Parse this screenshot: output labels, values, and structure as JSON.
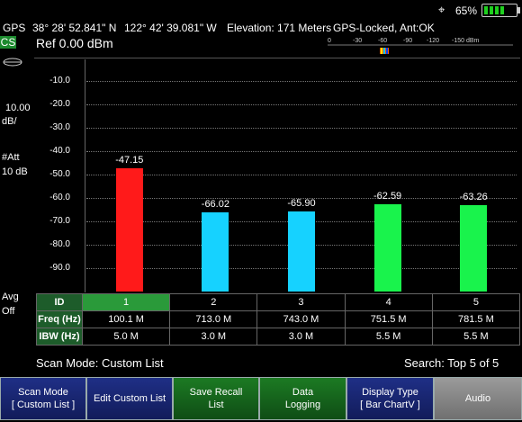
{
  "status": {
    "gps": "GPS",
    "latitude": "38° 28' 52.841\" N",
    "longitude": "122° 42' 39.081\" W",
    "elevation": "Elevation: 171 Meters",
    "gps_state": "GPS-Locked, Ant:OK",
    "settings_icon": "gear-icon",
    "battery_percent": "65%"
  },
  "left_panel": {
    "mode": "CS",
    "scale_value": "10.00",
    "scale_unit": "dB/",
    "att_label": "#Att",
    "att_value": "10 dB",
    "avg_label": "Avg",
    "avg_value": "Off"
  },
  "ref": "Ref  0.00  dBm",
  "scale_ticks": [
    "0",
    "-30",
    "-60",
    "-90",
    "-120",
    "-150 dBm"
  ],
  "chart_data": {
    "type": "bar",
    "categories": [
      "1",
      "2",
      "3",
      "4",
      "5"
    ],
    "values": [
      -47.15,
      -66.02,
      -65.9,
      -62.59,
      -63.26
    ],
    "value_labels": [
      "-47.15",
      "-66.02",
      "-65.90",
      "-62.59",
      "-63.26"
    ],
    "colors": [
      "#ff1a1a",
      "#16d2ff",
      "#16d2ff",
      "#19f34c",
      "#19f34c"
    ],
    "yticks": [
      "-10.0",
      "-20.0",
      "-30.0",
      "-40.0",
      "-50.0",
      "-60.0",
      "-70.0",
      "-80.0",
      "-90.0"
    ],
    "ylim": [
      -100,
      0
    ],
    "grid": true
  },
  "table": {
    "headers": [
      "ID",
      "Freq (Hz)",
      "IBW (Hz)"
    ],
    "ids": [
      "1",
      "2",
      "3",
      "4",
      "5"
    ],
    "freq": [
      "100.1 M",
      "713.0 M",
      "743.0 M",
      "751.5 M",
      "781.5 M"
    ],
    "ibw": [
      "5.0 M",
      "3.0 M",
      "3.0 M",
      "5.5 M",
      "5.5 M"
    ]
  },
  "footer": {
    "scan_mode": "Scan Mode: Custom List",
    "search": "Search: Top 5 of 5"
  },
  "softkeys": [
    {
      "line1": "Scan Mode",
      "line2": "[ Custom List ]"
    },
    {
      "line1": "Edit Custom List",
      "line2": ""
    },
    {
      "line1": "Save Recall",
      "line2": "List"
    },
    {
      "line1": "Data",
      "line2": "Logging"
    },
    {
      "line1": "Display Type",
      "line2": "[ Bar ChartV ]"
    },
    {
      "line1": "Audio",
      "line2": ""
    }
  ]
}
